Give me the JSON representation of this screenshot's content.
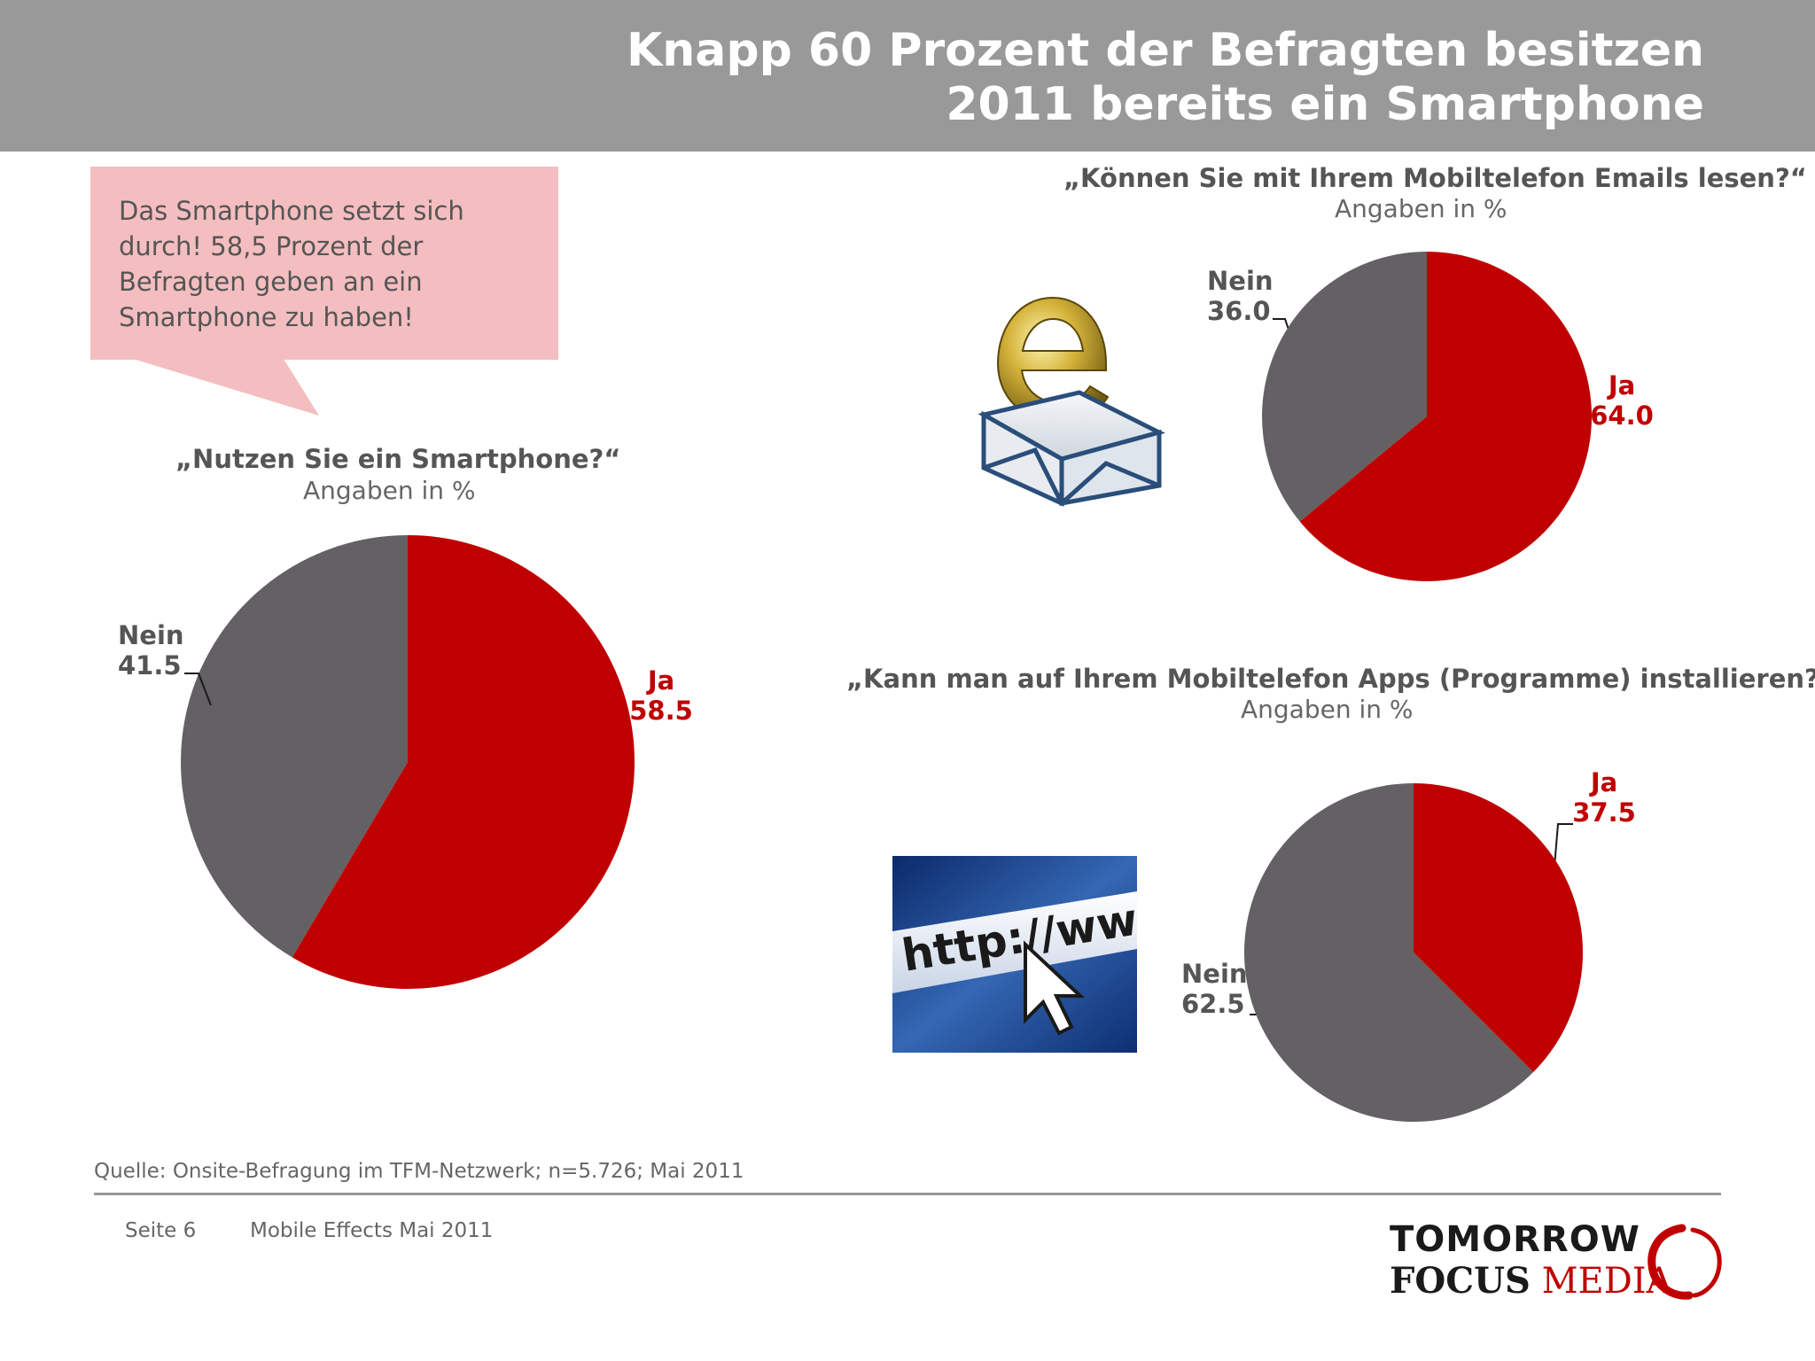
{
  "header": {
    "title_line1": "Knapp 60 Prozent der Befragten besitzen",
    "title_line2": "2011 bereits ein Smartphone"
  },
  "callout": {
    "text": "Das Smartphone setzt sich durch! 58,5 Prozent der Befragten geben an ein Smartphone zu haben!"
  },
  "charts": {
    "smartphone": {
      "question": "„Nutzen Sie ein Smartphone?“",
      "unit": "Angaben in %",
      "ja_label": "Ja",
      "ja_value": "58.5",
      "nein_label": "Nein",
      "nein_value": "41.5"
    },
    "emails": {
      "question": "„Können Sie mit Ihrem Mobiltelefon Emails lesen?“",
      "unit": "Angaben in %",
      "ja_label": "Ja",
      "ja_value": "64.0",
      "nein_label": "Nein",
      "nein_value": "36.0"
    },
    "apps": {
      "question": "„Kann man auf Ihrem Mobiltelefon Apps (Programme) installieren?“",
      "unit": "Angaben in %",
      "ja_label": "Ja",
      "ja_value": "37.5",
      "nein_label": "Nein",
      "nein_value": "62.5"
    }
  },
  "chart_data": [
    {
      "type": "pie",
      "title": "„Nutzen Sie ein Smartphone?“",
      "subtitle": "Angaben in %",
      "categories": [
        "Ja",
        "Nein"
      ],
      "values": [
        58.5,
        41.5
      ],
      "colors": [
        "#c00000",
        "#636163"
      ]
    },
    {
      "type": "pie",
      "title": "„Können Sie mit Ihrem Mobiltelefon Emails lesen?“",
      "subtitle": "Angaben in %",
      "categories": [
        "Ja",
        "Nein"
      ],
      "values": [
        64.0,
        36.0
      ],
      "colors": [
        "#c00000",
        "#636163"
      ]
    },
    {
      "type": "pie",
      "title": "„Kann man auf Ihrem Mobiltelefon Apps (Programme) installieren?“",
      "subtitle": "Angaben in %",
      "categories": [
        "Ja",
        "Nein"
      ],
      "values": [
        37.5,
        62.5
      ],
      "colors": [
        "#c00000",
        "#636163"
      ]
    }
  ],
  "images": {
    "email_icon": "email-icon",
    "http_icon": "http-cursor-icon",
    "http_text": "http://www"
  },
  "footer": {
    "source": "Quelle: Onsite-Befragung im TFM-Netzwerk; n=5.726; Mai 2011",
    "page": "Seite 6",
    "doc": "Mobile Effects Mai 2011"
  },
  "logo": {
    "line1": "TOMORROW",
    "focus": "FOCUS",
    "media": "MEDIA"
  },
  "colors": {
    "ja": "#c00000",
    "nein": "#636163",
    "header": "#999999",
    "callout": "#f4bec0"
  }
}
